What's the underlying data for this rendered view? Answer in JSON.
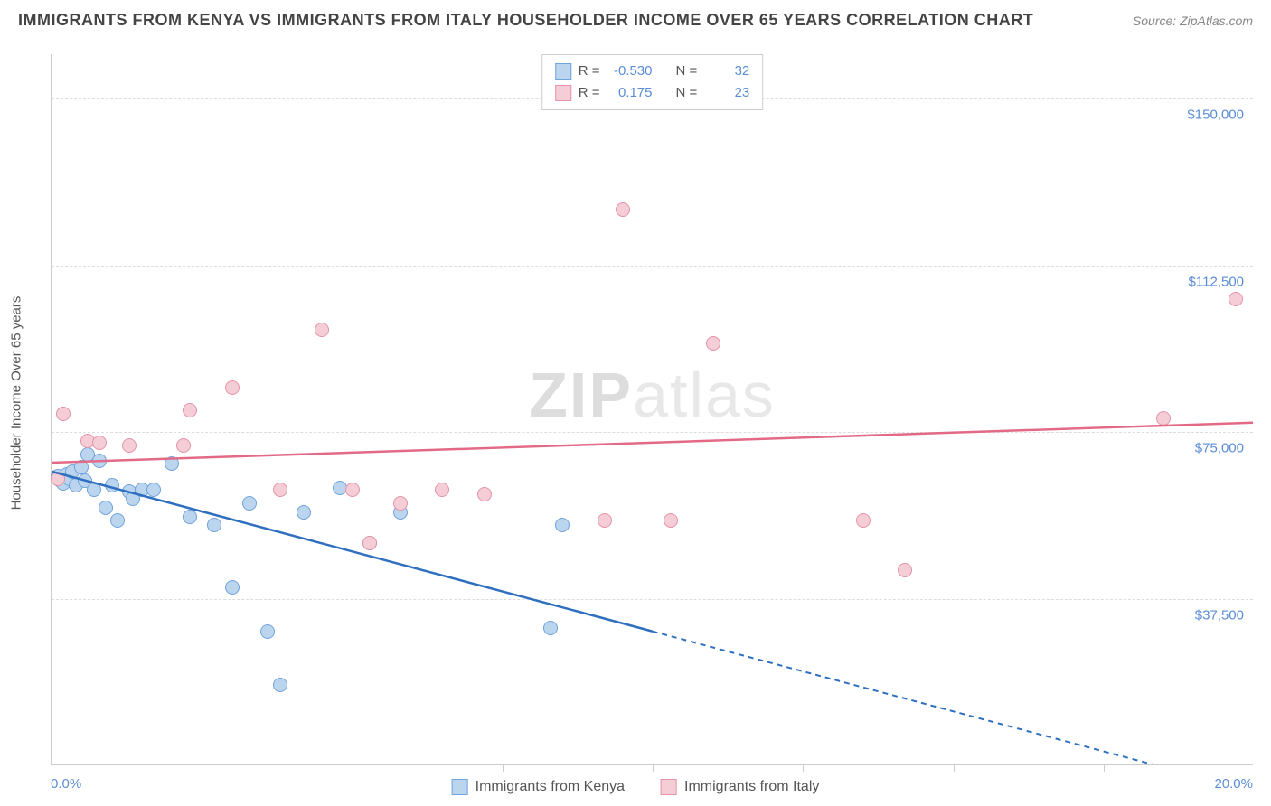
{
  "header": {
    "title": "IMMIGRANTS FROM KENYA VS IMMIGRANTS FROM ITALY HOUSEHOLDER INCOME OVER 65 YEARS CORRELATION CHART",
    "source_prefix": "Source: ",
    "source_name": "ZipAtlas.com"
  },
  "watermark": {
    "bold": "ZIP",
    "light": "atlas"
  },
  "chart": {
    "type": "scatter",
    "y_axis_title": "Householder Income Over 65 years",
    "background_color": "#ffffff",
    "grid_color": "#dddddd",
    "axis_color": "#cccccc",
    "x": {
      "min": 0.0,
      "max": 20.0,
      "label_min": "0.0%",
      "label_max": "20.0%",
      "tick_step_pct": 12.5
    },
    "y": {
      "min": 0,
      "max": 160000,
      "grid_values": [
        37500,
        75000,
        112500,
        150000
      ],
      "grid_labels": [
        "$37,500",
        "$75,000",
        "$112,500",
        "$150,000"
      ]
    },
    "series": [
      {
        "name": "Immigrants from Kenya",
        "fill": "#bcd5ef",
        "stroke": "#6fa3db",
        "trend_color": "#2f6fc0",
        "r_value": "-0.530",
        "n_value": "32",
        "trend": {
          "x1": 0.0,
          "y1": 66000,
          "x2_solid": 10.0,
          "y2_solid": 30000,
          "x2_dash": 20.0,
          "y2_dash": -6000
        },
        "points": [
          {
            "x": 0.1,
            "y": 65000
          },
          {
            "x": 0.15,
            "y": 64000
          },
          {
            "x": 0.2,
            "y": 63500
          },
          {
            "x": 0.25,
            "y": 65500
          },
          {
            "x": 0.3,
            "y": 64500
          },
          {
            "x": 0.35,
            "y": 66000
          },
          {
            "x": 0.4,
            "y": 63000
          },
          {
            "x": 0.5,
            "y": 67000
          },
          {
            "x": 0.55,
            "y": 64000
          },
          {
            "x": 0.6,
            "y": 70000
          },
          {
            "x": 0.7,
            "y": 62000
          },
          {
            "x": 0.8,
            "y": 68500
          },
          {
            "x": 0.9,
            "y": 58000
          },
          {
            "x": 1.0,
            "y": 63000
          },
          {
            "x": 1.1,
            "y": 55000
          },
          {
            "x": 1.3,
            "y": 61500
          },
          {
            "x": 1.35,
            "y": 60000
          },
          {
            "x": 1.5,
            "y": 62000
          },
          {
            "x": 1.7,
            "y": 62000
          },
          {
            "x": 2.0,
            "y": 68000
          },
          {
            "x": 2.3,
            "y": 56000
          },
          {
            "x": 2.7,
            "y": 54000
          },
          {
            "x": 3.0,
            "y": 40000
          },
          {
            "x": 3.3,
            "y": 59000
          },
          {
            "x": 3.6,
            "y": 30000
          },
          {
            "x": 3.8,
            "y": 18000
          },
          {
            "x": 4.2,
            "y": 57000
          },
          {
            "x": 4.8,
            "y": 62500
          },
          {
            "x": 5.3,
            "y": 50000
          },
          {
            "x": 5.8,
            "y": 57000
          },
          {
            "x": 8.3,
            "y": 31000
          },
          {
            "x": 8.5,
            "y": 54000
          }
        ]
      },
      {
        "name": "Immigrants from Italy",
        "fill": "#f5cdd7",
        "stroke": "#e593a7",
        "trend_color": "#e26a87",
        "r_value": "0.175",
        "n_value": "23",
        "trend": {
          "x1": 0.0,
          "y1": 68000,
          "x2_solid": 20.0,
          "y2_solid": 77000,
          "x2_dash": 20.0,
          "y2_dash": 77000
        },
        "points": [
          {
            "x": 0.1,
            "y": 64500
          },
          {
            "x": 0.2,
            "y": 79000
          },
          {
            "x": 0.6,
            "y": 73000
          },
          {
            "x": 0.8,
            "y": 72500
          },
          {
            "x": 1.3,
            "y": 72000
          },
          {
            "x": 2.2,
            "y": 72000
          },
          {
            "x": 2.3,
            "y": 80000
          },
          {
            "x": 3.0,
            "y": 85000
          },
          {
            "x": 3.8,
            "y": 62000
          },
          {
            "x": 4.5,
            "y": 98000
          },
          {
            "x": 5.0,
            "y": 62000
          },
          {
            "x": 5.3,
            "y": 50000
          },
          {
            "x": 5.8,
            "y": 59000
          },
          {
            "x": 6.5,
            "y": 62000
          },
          {
            "x": 7.2,
            "y": 61000
          },
          {
            "x": 9.2,
            "y": 55000
          },
          {
            "x": 9.5,
            "y": 125000
          },
          {
            "x": 10.3,
            "y": 55000
          },
          {
            "x": 11.0,
            "y": 95000
          },
          {
            "x": 13.5,
            "y": 55000
          },
          {
            "x": 14.2,
            "y": 44000
          },
          {
            "x": 18.5,
            "y": 78000
          },
          {
            "x": 19.7,
            "y": 105000
          }
        ]
      }
    ],
    "legend_labels": {
      "r": "R =",
      "n": "N ="
    }
  }
}
